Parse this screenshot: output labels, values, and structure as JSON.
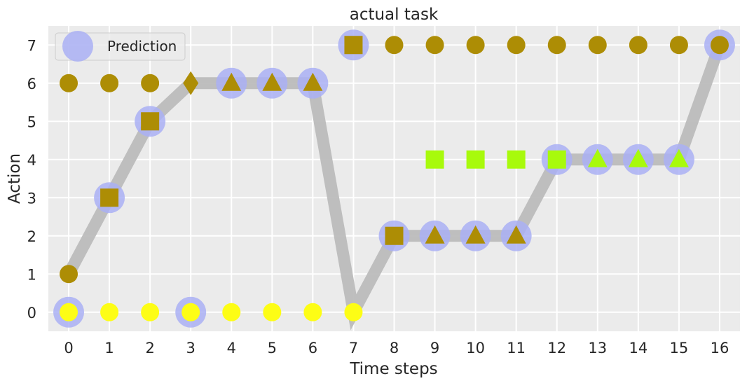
{
  "chart_data": {
    "type": "scatter",
    "title": "actual task",
    "xlabel": "Time steps",
    "ylabel": "Action",
    "xlim": [
      -0.5,
      16.5
    ],
    "ylim": [
      -0.5,
      7.5
    ],
    "x_ticks": [
      0,
      1,
      2,
      3,
      4,
      5,
      6,
      7,
      8,
      9,
      10,
      11,
      12,
      13,
      14,
      15,
      16
    ],
    "y_ticks": [
      0,
      1,
      2,
      3,
      4,
      5,
      6,
      7
    ],
    "grid": true,
    "background": "#ebebeb",
    "legend": {
      "placement": "top-left",
      "entries": [
        {
          "label": "Prediction",
          "marker": "circle",
          "color": "#aab0f5"
        }
      ]
    },
    "prediction_line": {
      "color": "#bcbcbc",
      "points": [
        [
          0,
          1
        ],
        [
          1,
          3
        ],
        [
          2,
          5
        ],
        [
          3,
          6
        ],
        [
          4,
          6
        ],
        [
          5,
          6
        ],
        [
          6,
          6
        ],
        [
          7,
          0
        ],
        [
          8,
          2
        ],
        [
          9,
          2
        ],
        [
          10,
          2
        ],
        [
          11,
          2
        ],
        [
          12,
          4
        ],
        [
          13,
          4
        ],
        [
          14,
          4
        ],
        [
          15,
          4
        ],
        [
          16,
          7
        ]
      ]
    },
    "prediction_markers": {
      "color": "#aab0f5",
      "points": [
        [
          0,
          0
        ],
        [
          1,
          3
        ],
        [
          2,
          5
        ],
        [
          3,
          0
        ],
        [
          4,
          6
        ],
        [
          5,
          6
        ],
        [
          6,
          6
        ],
        [
          7,
          7
        ],
        [
          8,
          2
        ],
        [
          9,
          2
        ],
        [
          10,
          2
        ],
        [
          11,
          2
        ],
        [
          12,
          4
        ],
        [
          13,
          4
        ],
        [
          14,
          4
        ],
        [
          15,
          4
        ],
        [
          16,
          7
        ]
      ]
    },
    "series": [
      {
        "color": "#fdfd15",
        "points": [
          {
            "x": 0,
            "y": 0,
            "marker": "circle"
          },
          {
            "x": 1,
            "y": 0,
            "marker": "circle"
          },
          {
            "x": 2,
            "y": 0,
            "marker": "circle"
          },
          {
            "x": 3,
            "y": 0,
            "marker": "circle"
          },
          {
            "x": 4,
            "y": 0,
            "marker": "circle"
          },
          {
            "x": 5,
            "y": 0,
            "marker": "circle"
          },
          {
            "x": 6,
            "y": 0,
            "marker": "circle"
          },
          {
            "x": 7,
            "y": 0,
            "marker": "circle"
          }
        ]
      },
      {
        "color": "#ad8d05",
        "points": [
          {
            "x": 0,
            "y": 6,
            "marker": "circle"
          },
          {
            "x": 1,
            "y": 6,
            "marker": "circle"
          },
          {
            "x": 2,
            "y": 6,
            "marker": "circle"
          },
          {
            "x": 0,
            "y": 1,
            "marker": "circle"
          },
          {
            "x": 1,
            "y": 3,
            "marker": "square"
          },
          {
            "x": 2,
            "y": 5,
            "marker": "square"
          },
          {
            "x": 3,
            "y": 6,
            "marker": "diamond"
          },
          {
            "x": 4,
            "y": 6,
            "marker": "triangle"
          },
          {
            "x": 5,
            "y": 6,
            "marker": "triangle"
          },
          {
            "x": 6,
            "y": 6,
            "marker": "triangle"
          },
          {
            "x": 7,
            "y": 7,
            "marker": "square"
          },
          {
            "x": 8,
            "y": 7,
            "marker": "circle"
          },
          {
            "x": 9,
            "y": 7,
            "marker": "circle"
          },
          {
            "x": 10,
            "y": 7,
            "marker": "circle"
          },
          {
            "x": 11,
            "y": 7,
            "marker": "circle"
          },
          {
            "x": 12,
            "y": 7,
            "marker": "circle"
          },
          {
            "x": 13,
            "y": 7,
            "marker": "circle"
          },
          {
            "x": 14,
            "y": 7,
            "marker": "circle"
          },
          {
            "x": 15,
            "y": 7,
            "marker": "circle"
          },
          {
            "x": 16,
            "y": 7,
            "marker": "circle"
          },
          {
            "x": 8,
            "y": 2,
            "marker": "square"
          },
          {
            "x": 9,
            "y": 2,
            "marker": "triangle"
          },
          {
            "x": 10,
            "y": 2,
            "marker": "triangle"
          },
          {
            "x": 11,
            "y": 2,
            "marker": "triangle"
          }
        ]
      },
      {
        "color": "#a8fa0c",
        "points": [
          {
            "x": 9,
            "y": 4,
            "marker": "square"
          },
          {
            "x": 10,
            "y": 4,
            "marker": "square"
          },
          {
            "x": 11,
            "y": 4,
            "marker": "square"
          },
          {
            "x": 12,
            "y": 4,
            "marker": "square"
          },
          {
            "x": 13,
            "y": 4,
            "marker": "triangle"
          },
          {
            "x": 14,
            "y": 4,
            "marker": "triangle"
          },
          {
            "x": 15,
            "y": 4,
            "marker": "triangle"
          }
        ]
      }
    ]
  }
}
